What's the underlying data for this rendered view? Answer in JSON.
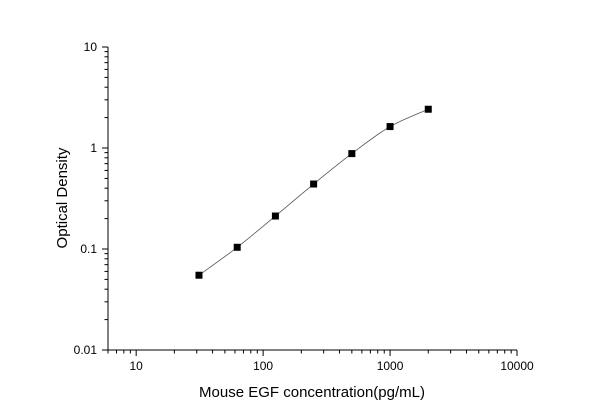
{
  "chart_data": {
    "type": "scatter",
    "title": "",
    "xlabel": "Mouse EGF concentration(pg/mL)",
    "ylabel": "Optical Density",
    "xscale": "log",
    "yscale": "log",
    "xlim": [
      6,
      10000
    ],
    "ylim": [
      0.01,
      10
    ],
    "xticks": [
      10,
      100,
      1000,
      10000
    ],
    "xtick_labels": [
      "10",
      "100",
      "1000",
      "10000"
    ],
    "yticks": [
      0.01,
      0.1,
      1,
      10
    ],
    "ytick_labels": [
      "0.01",
      "0.1",
      "1",
      "10"
    ],
    "grid": false,
    "legend": "none",
    "series": [
      {
        "marker": "square",
        "line": "smooth",
        "color": "#000000",
        "line_color": "#555555",
        "x": [
          31.25,
          62.5,
          125,
          250,
          500,
          1000,
          2000
        ],
        "y": [
          0.055,
          0.104,
          0.212,
          0.44,
          0.88,
          1.63,
          2.42
        ]
      }
    ]
  }
}
